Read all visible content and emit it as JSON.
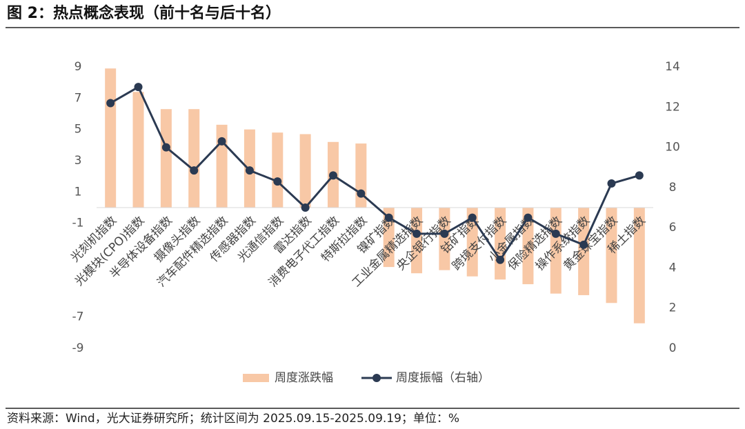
{
  "chart_data": {
    "type": "bar_line",
    "title": "图 2：热点概念表现（前十名与后十名）",
    "source": "资料来源：Wind，光大证券研究所；统计区间为 2025.09.15-2025.09.19；单位：%",
    "categories": [
      "光刻机指数",
      "光模块(CPO)指数",
      "半导体设备指数",
      "摄像头指数",
      "汽车配件精选指数",
      "传感器指数",
      "光通信指数",
      "雷达指数",
      "消费电子代工指数",
      "特斯拉指数",
      "镍矿指数",
      "工业金属精选指数",
      "央企银行指数",
      "钴矿指数",
      "跨境支付指数",
      "小金属指数",
      "保险精选指数",
      "操作系统指数",
      "黄金珠宝指数",
      "稀土指数"
    ],
    "series": [
      {
        "name": "周度涨跌幅",
        "type": "bar",
        "color": "#f8c8a6",
        "values": [
          8.9,
          7.4,
          6.3,
          6.3,
          5.3,
          5.0,
          4.8,
          4.7,
          4.2,
          4.1,
          -3.8,
          -4.2,
          -4.0,
          -4.4,
          -4.6,
          -4.9,
          -5.5,
          -5.6,
          -6.1,
          -7.4
        ]
      },
      {
        "name": "周度振幅（右轴）",
        "type": "line",
        "axis": "y2",
        "color": "#2b3a52",
        "values": [
          12.2,
          13.0,
          10.0,
          8.85,
          10.3,
          8.85,
          8.3,
          7.0,
          8.6,
          7.7,
          6.5,
          5.7,
          5.7,
          6.5,
          4.4,
          6.5,
          5.7,
          5.15,
          8.2,
          8.6
        ]
      }
    ],
    "ylim": [
      -9,
      9
    ],
    "yticks": [
      9,
      7,
      5,
      3,
      1,
      -1,
      -7,
      -9
    ],
    "y2lim": [
      0,
      14
    ],
    "y2ticks": [
      14,
      12,
      10,
      8,
      6,
      4,
      2,
      0
    ],
    "legend": "bottom"
  }
}
